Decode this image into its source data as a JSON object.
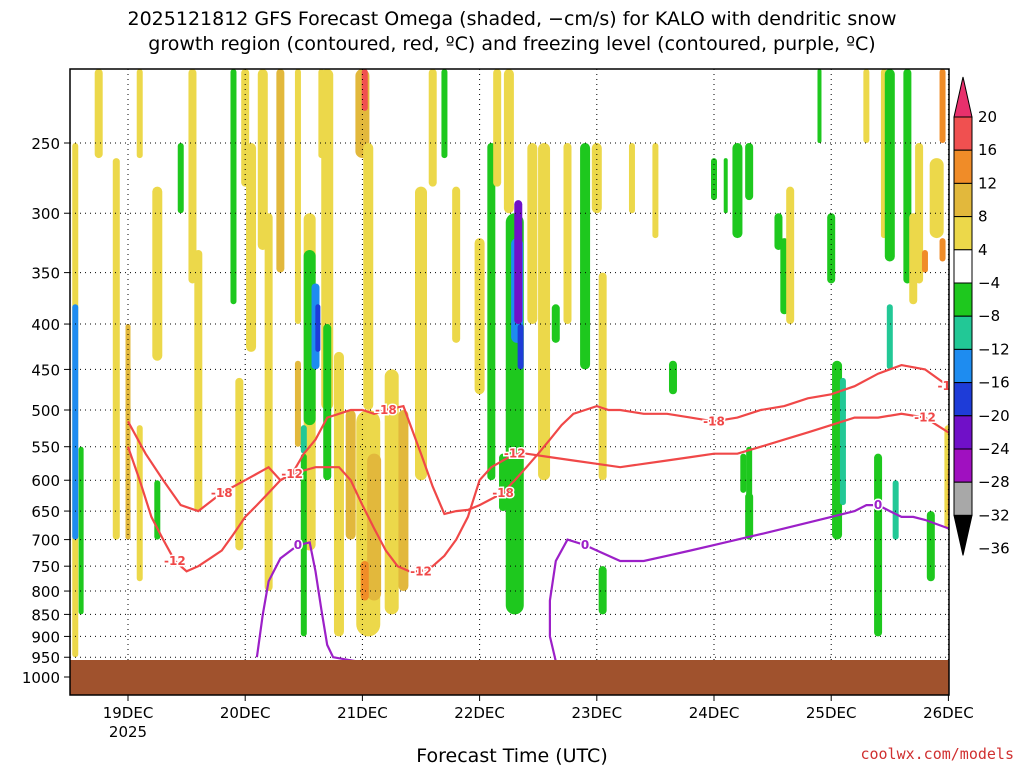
{
  "chart_data": {
    "type": "heatmap",
    "title": "2025121812 GFS Forecast Omega (shaded, −cm/s) for KALO with dendritic snow",
    "subtitle": "growth region (contoured, red, ºC) and freezing level (contoured, purple, ºC)",
    "xlabel": "Forecast Time (UTC)",
    "ylabel": "",
    "y_scale": "log",
    "ylim_hpa": [
      1050,
      200
    ],
    "y_ticks": [
      250,
      300,
      350,
      400,
      450,
      500,
      550,
      600,
      650,
      700,
      750,
      800,
      850,
      900,
      950,
      1000
    ],
    "x_ticks": [
      {
        "label": "19DEC",
        "sub": "2025"
      },
      {
        "label": "20DEC",
        "sub": ""
      },
      {
        "label": "21DEC",
        "sub": ""
      },
      {
        "label": "22DEC",
        "sub": ""
      },
      {
        "label": "23DEC",
        "sub": ""
      },
      {
        "label": "24DEC",
        "sub": ""
      },
      {
        "label": "25DEC",
        "sub": ""
      },
      {
        "label": "26DEC",
        "sub": ""
      }
    ],
    "grid": true,
    "colorbar": {
      "labels": [
        "20",
        "16",
        "12",
        "8",
        "4",
        "−4",
        "−8",
        "−12",
        "−16",
        "−20",
        "−24",
        "−28",
        "−32",
        "−36"
      ],
      "colors": [
        "#e8306c",
        "#f05050",
        "#f08c28",
        "#e2b83c",
        "#ecd84a",
        "#ffffff",
        "#1ec81e",
        "#22c896",
        "#1e8cf0",
        "#1e3cd8",
        "#7010c8",
        "#a010c0",
        "#a8a8a8",
        "#000000"
      ]
    },
    "contour_labels": {
      "dgz_upper": "-18",
      "dgz_lower": "-12",
      "freezing": "0"
    },
    "dgz_minus18_hpa": [
      [
        0.0,
        515
      ],
      [
        0.15,
        560
      ],
      [
        0.3,
        600
      ],
      [
        0.45,
        640
      ],
      [
        0.6,
        650
      ],
      [
        0.8,
        620
      ],
      [
        1.0,
        600
      ],
      [
        1.2,
        580
      ],
      [
        1.3,
        600
      ],
      [
        1.4,
        590
      ],
      [
        1.5,
        560
      ],
      [
        1.6,
        540
      ],
      [
        1.7,
        510
      ],
      [
        1.8,
        505
      ],
      [
        1.9,
        500
      ],
      [
        2.0,
        500
      ],
      [
        2.1,
        505
      ],
      [
        2.2,
        500
      ],
      [
        2.35,
        495
      ],
      [
        2.5,
        560
      ],
      [
        2.6,
        610
      ],
      [
        2.7,
        655
      ],
      [
        2.8,
        650
      ],
      [
        2.9,
        648
      ],
      [
        3.0,
        640
      ],
      [
        3.1,
        630
      ],
      [
        3.2,
        620
      ],
      [
        3.3,
        600
      ],
      [
        3.4,
        580
      ],
      [
        3.5,
        560
      ],
      [
        3.6,
        540
      ],
      [
        3.7,
        520
      ],
      [
        3.8,
        505
      ],
      [
        3.9,
        500
      ],
      [
        4.0,
        495
      ],
      [
        4.1,
        500
      ],
      [
        4.2,
        500
      ],
      [
        4.4,
        505
      ],
      [
        4.6,
        505
      ],
      [
        4.8,
        510
      ],
      [
        5.0,
        515
      ],
      [
        5.2,
        510
      ],
      [
        5.4,
        500
      ],
      [
        5.6,
        495
      ],
      [
        5.8,
        485
      ],
      [
        6.0,
        480
      ],
      [
        6.2,
        470
      ],
      [
        6.4,
        455
      ],
      [
        6.6,
        445
      ],
      [
        6.8,
        450
      ],
      [
        7.0,
        470
      ],
      [
        7.1,
        490
      ],
      [
        7.2,
        500
      ]
    ],
    "dgz_minus12_hpa": [
      [
        0.0,
        550
      ],
      [
        0.1,
        600
      ],
      [
        0.2,
        660
      ],
      [
        0.3,
        700
      ],
      [
        0.4,
        740
      ],
      [
        0.5,
        760
      ],
      [
        0.6,
        750
      ],
      [
        0.7,
        735
      ],
      [
        0.8,
        720
      ],
      [
        0.9,
        690
      ],
      [
        1.0,
        660
      ],
      [
        1.1,
        640
      ],
      [
        1.2,
        620
      ],
      [
        1.3,
        600
      ],
      [
        1.4,
        590
      ],
      [
        1.5,
        585
      ],
      [
        1.6,
        580
      ],
      [
        1.8,
        580
      ],
      [
        1.9,
        600
      ],
      [
        2.0,
        640
      ],
      [
        2.1,
        680
      ],
      [
        2.2,
        720
      ],
      [
        2.3,
        750
      ],
      [
        2.4,
        760
      ],
      [
        2.5,
        760
      ],
      [
        2.6,
        750
      ],
      [
        2.7,
        730
      ],
      [
        2.8,
        700
      ],
      [
        2.9,
        660
      ],
      [
        3.0,
        600
      ],
      [
        3.1,
        580
      ],
      [
        3.2,
        570
      ],
      [
        3.3,
        560
      ],
      [
        3.4,
        560
      ],
      [
        3.6,
        565
      ],
      [
        3.8,
        570
      ],
      [
        4.0,
        575
      ],
      [
        4.2,
        580
      ],
      [
        4.4,
        575
      ],
      [
        4.6,
        570
      ],
      [
        4.8,
        565
      ],
      [
        5.0,
        560
      ],
      [
        5.2,
        560
      ],
      [
        5.4,
        550
      ],
      [
        5.6,
        540
      ],
      [
        5.8,
        530
      ],
      [
        6.0,
        520
      ],
      [
        6.2,
        510
      ],
      [
        6.4,
        510
      ],
      [
        6.6,
        505
      ],
      [
        6.8,
        510
      ],
      [
        7.0,
        530
      ],
      [
        7.2,
        545
      ]
    ],
    "freezing_hpa": [
      [
        1.1,
        950
      ],
      [
        1.15,
        850
      ],
      [
        1.2,
        780
      ],
      [
        1.3,
        735
      ],
      [
        1.45,
        710
      ],
      [
        1.55,
        705
      ],
      [
        1.6,
        760
      ],
      [
        1.65,
        840
      ],
      [
        1.7,
        920
      ],
      [
        1.75,
        950
      ],
      [
        1.85,
        955
      ],
      [
        1.95,
        960
      ],
      [
        2.05,
        960
      ],
      [
        2.1,
        965
      ],
      [
        2.15,
        970
      ],
      [
        3.65,
        960
      ],
      [
        3.6,
        900
      ],
      [
        3.6,
        820
      ],
      [
        3.65,
        740
      ],
      [
        3.75,
        700
      ],
      [
        3.9,
        710
      ],
      [
        4.0,
        720
      ],
      [
        4.2,
        740
      ],
      [
        4.4,
        740
      ],
      [
        4.6,
        730
      ],
      [
        4.8,
        720
      ],
      [
        5.0,
        710
      ],
      [
        5.2,
        700
      ],
      [
        5.4,
        690
      ],
      [
        5.6,
        680
      ],
      [
        5.8,
        670
      ],
      [
        6.0,
        660
      ],
      [
        6.2,
        650
      ],
      [
        6.3,
        640
      ],
      [
        6.4,
        640
      ],
      [
        6.5,
        650
      ],
      [
        6.6,
        660
      ],
      [
        6.7,
        660
      ],
      [
        6.8,
        665
      ],
      [
        7.0,
        680
      ]
    ]
  },
  "credit": "coolwx.com/models"
}
